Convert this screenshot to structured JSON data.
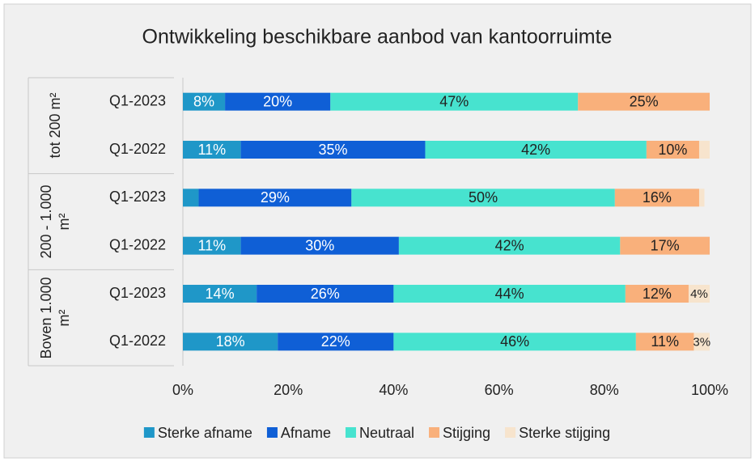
{
  "chart_data": {
    "type": "stacked-bar-horizontal",
    "title": "Ontwikkeling beschikbare aanbod van kantoorruimte",
    "group_labels": [
      "tot 200 m²",
      "200 - 1.000 m²",
      "Boven 1.000 m²"
    ],
    "categories": [
      "Q1-2023",
      "Q1-2022",
      "Q1-2023",
      "Q1-2022",
      "Q1-2023",
      "Q1-2022"
    ],
    "series": [
      {
        "name": "Sterke afname",
        "color": "#1f97c8",
        "values": [
          8,
          11,
          3,
          11,
          14,
          18
        ],
        "value_labels": [
          "8%",
          "11%",
          null,
          "11%",
          "14%",
          "18%"
        ]
      },
      {
        "name": "Afname",
        "color": "#0f5fd6",
        "values": [
          20,
          35,
          29,
          30,
          26,
          22
        ],
        "value_labels": [
          "20%",
          "35%",
          "29%",
          "30%",
          "26%",
          "22%"
        ]
      },
      {
        "name": "Neutraal",
        "color": "#47e3cf",
        "values": [
          47,
          42,
          50,
          42,
          44,
          46
        ],
        "value_labels": [
          "47%",
          "42%",
          "50%",
          "42%",
          "44%",
          "46%"
        ]
      },
      {
        "name": "Stijging",
        "color": "#f9b07b",
        "values": [
          25,
          10,
          16,
          17,
          12,
          11
        ],
        "value_labels": [
          "25%",
          "10%",
          "16%",
          "17%",
          "12%",
          "11%"
        ]
      },
      {
        "name": "Sterke stijging",
        "color": "#f7e4cd",
        "values": [
          0,
          2,
          1,
          0,
          4,
          3
        ],
        "value_labels": [
          null,
          null,
          null,
          null,
          "4%",
          "3%"
        ]
      }
    ],
    "xlim": [
      0,
      100
    ],
    "xticks": [
      {
        "value": 0,
        "label": "0%"
      },
      {
        "value": 20,
        "label": "20%"
      },
      {
        "value": 40,
        "label": "40%"
      },
      {
        "value": 60,
        "label": "60%"
      },
      {
        "value": 80,
        "label": "80%"
      },
      {
        "value": 100,
        "label": "100%"
      }
    ],
    "legend": "bottom"
  }
}
